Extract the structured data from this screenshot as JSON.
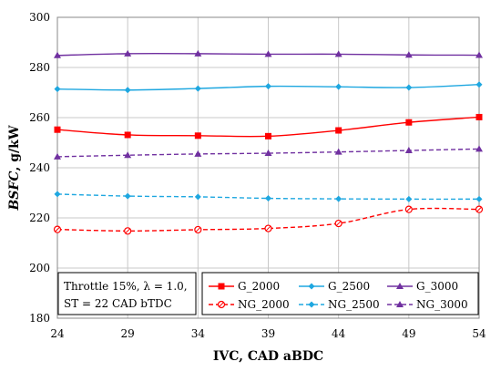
{
  "chart_data": {
    "type": "line",
    "xlabel": "IVC, CAD aBDC",
    "ylabel_main": "BSFC",
    "ylabel_unit": ", g/kW",
    "x": [
      24,
      29,
      34,
      39,
      44,
      49,
      54
    ],
    "xlim": [
      24,
      54
    ],
    "ylim": [
      180,
      300
    ],
    "yticks": [
      180,
      200,
      220,
      240,
      260,
      280,
      300
    ],
    "grid": true,
    "legend_placement": "bottom-right",
    "annotation": {
      "line1": "Throttle 15%, λ = 1.0,",
      "line2": "ST = 22 CAD bTDC"
    },
    "series": [
      {
        "name": "G_2000",
        "color": "#ff0000",
        "dash": "solid",
        "marker": "square",
        "values": [
          255.2,
          253.1,
          252.8,
          252.6,
          254.9,
          258.1,
          260.2
        ]
      },
      {
        "name": "G_2500",
        "color": "#1ea7e0",
        "dash": "solid",
        "marker": "diamond",
        "values": [
          271.4,
          271.0,
          271.6,
          272.5,
          272.3,
          272.0,
          273.2
        ]
      },
      {
        "name": "G_3000",
        "color": "#7030a0",
        "dash": "solid",
        "marker": "triangle",
        "values": [
          284.8,
          285.5,
          285.5,
          285.3,
          285.3,
          285.0,
          284.9
        ]
      },
      {
        "name": "NG_2000",
        "color": "#ff0000",
        "dash": "dashed",
        "marker": "circle-open",
        "values": [
          215.4,
          214.8,
          215.3,
          215.8,
          217.8,
          223.4,
          223.4
        ]
      },
      {
        "name": "NG_2500",
        "color": "#1ea7e0",
        "dash": "dashed",
        "marker": "diamond",
        "values": [
          229.5,
          228.7,
          228.4,
          227.8,
          227.6,
          227.5,
          227.5
        ]
      },
      {
        "name": "NG_3000",
        "color": "#7030a0",
        "dash": "dashed",
        "marker": "triangle",
        "values": [
          244.4,
          245.0,
          245.5,
          245.8,
          246.3,
          246.9,
          247.5
        ]
      }
    ]
  }
}
